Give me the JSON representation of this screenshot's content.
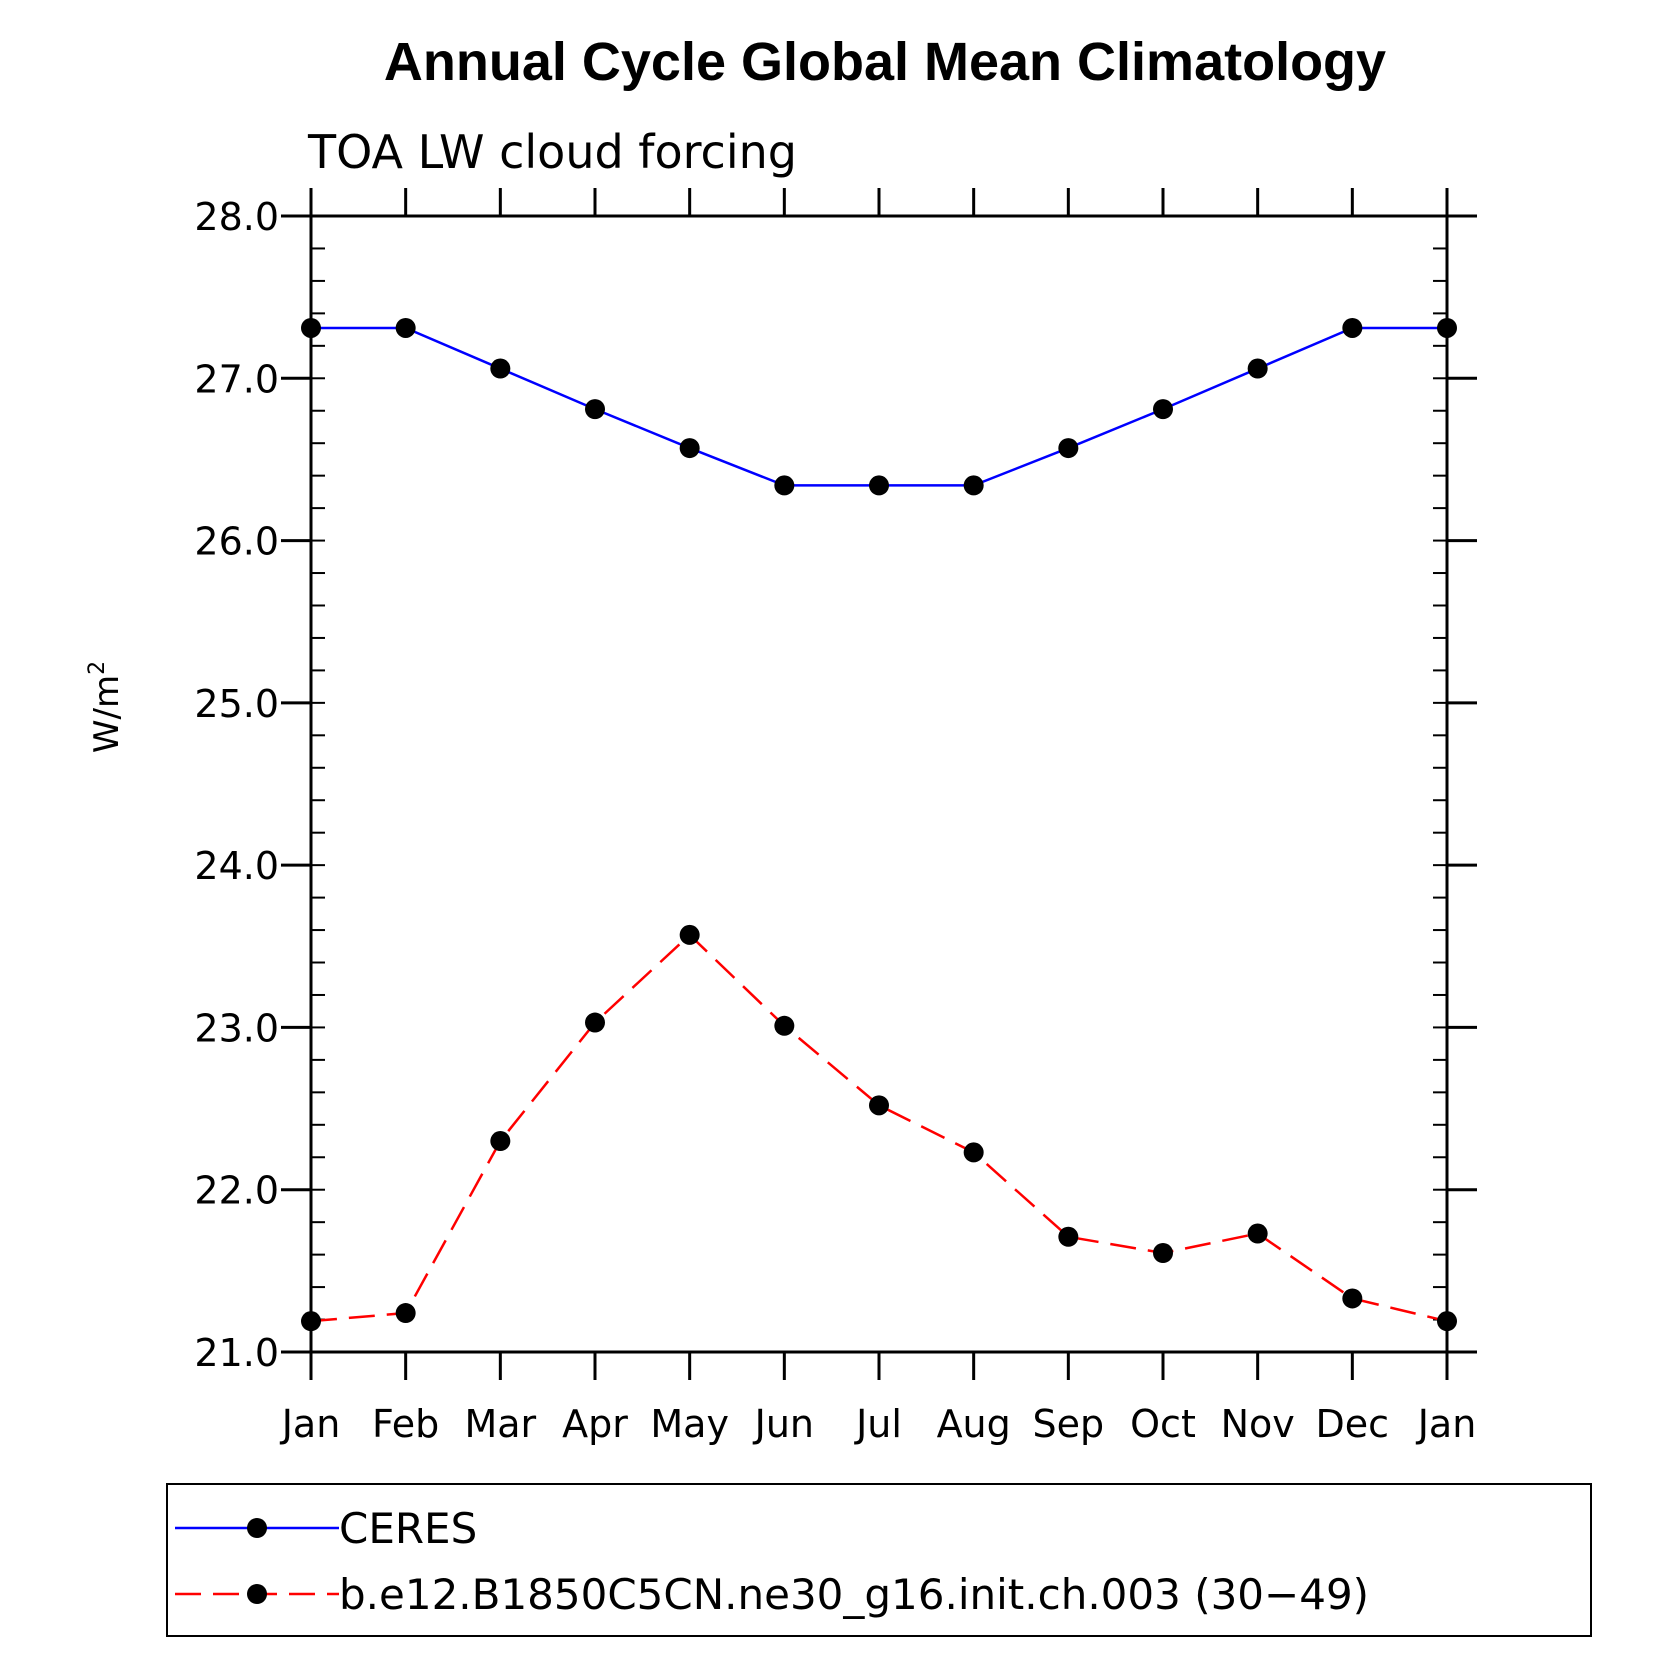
{
  "chart_data": {
    "type": "line",
    "title": "Annual Cycle Global Mean Climatology",
    "subtitle": "TOA LW cloud forcing",
    "ylabel": "W/m",
    "ylabel_sup": "2",
    "xlabel": "",
    "ylim": [
      21.0,
      28.0
    ],
    "yticks": [
      21.0,
      22.0,
      23.0,
      24.0,
      25.0,
      26.0,
      27.0,
      28.0
    ],
    "ytick_labels": [
      "21.0",
      "22.0",
      "23.0",
      "24.0",
      "25.0",
      "26.0",
      "27.0",
      "28.0"
    ],
    "categories": [
      "Jan",
      "Feb",
      "Mar",
      "Apr",
      "May",
      "Jun",
      "Jul",
      "Aug",
      "Sep",
      "Oct",
      "Nov",
      "Dec",
      "Jan"
    ],
    "series": [
      {
        "name": "CERES",
        "color": "#0000ff",
        "dashed": false,
        "values": [
          27.31,
          27.31,
          27.06,
          26.81,
          26.57,
          26.34,
          26.34,
          26.34,
          26.57,
          26.81,
          27.06,
          27.31,
          27.31
        ]
      },
      {
        "name": "b.e12.B1850C5CN.ne30_g16.init.ch.003 (30−49)",
        "color": "#ff0000",
        "dashed": true,
        "values": [
          21.19,
          21.24,
          22.3,
          23.03,
          23.57,
          23.01,
          22.52,
          22.23,
          21.71,
          21.61,
          21.73,
          21.33,
          21.19
        ]
      }
    ],
    "marker_color": "#000000",
    "grid": false,
    "legend_position": "bottom"
  }
}
